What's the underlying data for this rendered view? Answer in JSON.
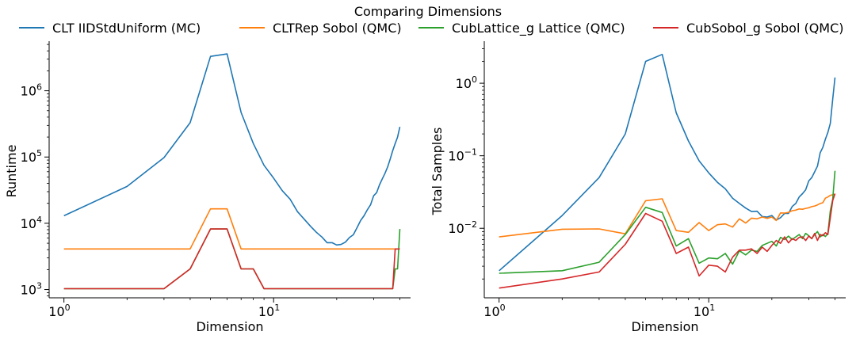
{
  "figure": {
    "title": "Comparing Dimensions"
  },
  "colors": {
    "mc": "#1f77b4",
    "rep": "#ff7f0e",
    "lat": "#2ca02c",
    "sob": "#d62728"
  },
  "chart_data": [
    {
      "type": "line",
      "xlabel": "Dimension",
      "ylabel": "Runtime",
      "xscale": "log",
      "yscale": "log",
      "xlim": [
        0.85,
        45
      ],
      "ylim": [
        750,
        5600000
      ],
      "xtick_labels": [
        "10^0",
        "10^1"
      ],
      "ytick_labels": [
        "10^3",
        "10^4",
        "10^5",
        "10^6"
      ],
      "legend": "top, above plots",
      "grid": false,
      "series": [
        {
          "name": "CLT IIDStdUniform (MC)",
          "color": "#1f77b4",
          "points": [
            [
              1,
              13000
            ],
            [
              2,
              36000
            ],
            [
              3,
              98000
            ],
            [
              4,
              330000
            ],
            [
              5,
              3300000
            ],
            [
              6,
              3600000
            ],
            [
              7,
              470000
            ],
            [
              8,
              160000
            ],
            [
              9,
              75000
            ],
            [
              10,
              48000
            ],
            [
              11,
              31000
            ],
            [
              12,
              23000
            ],
            [
              13,
              15000
            ],
            [
              14,
              11500
            ],
            [
              15,
              9000
            ],
            [
              16,
              7300
            ],
            [
              17,
              6200
            ],
            [
              18,
              5100
            ],
            [
              19,
              5100
            ],
            [
              20,
              4700
            ],
            [
              21,
              4800
            ],
            [
              22,
              5200
            ],
            [
              23,
              6100
            ],
            [
              24,
              6700
            ],
            [
              25,
              8600
            ],
            [
              26,
              11000
            ],
            [
              27,
              13000
            ],
            [
              28,
              16000
            ],
            [
              29,
              19000
            ],
            [
              30,
              26000
            ],
            [
              31,
              29000
            ],
            [
              32,
              38000
            ],
            [
              33,
              47000
            ],
            [
              34,
              57000
            ],
            [
              35,
              71000
            ],
            [
              36,
              94000
            ],
            [
              37,
              125000
            ],
            [
              38,
              160000
            ],
            [
              39,
              200000
            ],
            [
              40,
              285000
            ]
          ]
        },
        {
          "name": "CLTRep Sobol (QMC)",
          "color": "#ff7f0e",
          "points": [
            [
              1,
              4100
            ],
            [
              2,
              4100
            ],
            [
              3,
              4100
            ],
            [
              4,
              4100
            ],
            [
              5,
              16500
            ],
            [
              6,
              16500
            ],
            [
              7,
              4100
            ],
            [
              40,
              4100
            ]
          ]
        },
        {
          "name": "CubLattice_g Lattice (QMC)",
          "color": "#2ca02c",
          "points": [
            [
              1,
              1030
            ],
            [
              3,
              1030
            ],
            [
              4,
              2050
            ],
            [
              5,
              8200
            ],
            [
              6,
              8200
            ],
            [
              7,
              2050
            ],
            [
              8,
              2050
            ],
            [
              9,
              1030
            ],
            [
              37,
              1030
            ],
            [
              38,
              2050
            ],
            [
              39,
              2050
            ],
            [
              40,
              8200
            ]
          ]
        },
        {
          "name": "CubSobol_g Sobol (QMC)",
          "color": "#d62728",
          "points": [
            [
              1,
              1030
            ],
            [
              3,
              1030
            ],
            [
              4,
              2050
            ],
            [
              5,
              8200
            ],
            [
              6,
              8200
            ],
            [
              7,
              2050
            ],
            [
              8,
              2050
            ],
            [
              9,
              1030
            ],
            [
              37,
              1030
            ],
            [
              38,
              4100
            ],
            [
              39,
              4100
            ],
            [
              40,
              4100
            ]
          ]
        }
      ]
    },
    {
      "type": "line",
      "xlabel": "Dimension",
      "ylabel": "Total Samples",
      "xscale": "log",
      "yscale": "log",
      "xlim": [
        0.85,
        45
      ],
      "ylim": [
        0.0011,
        3.8
      ],
      "xtick_labels": [
        "10^0",
        "10^1"
      ],
      "ytick_labels": [
        "10^-2",
        "10^-1",
        "10^0"
      ],
      "legend": "top, above plots",
      "grid": false,
      "series": [
        {
          "name": "CLT IIDStdUniform (MC)",
          "color": "#1f77b4",
          "points": [
            [
              1,
              0.0026
            ],
            [
              2,
              0.015
            ],
            [
              3,
              0.05
            ],
            [
              4,
              0.2
            ],
            [
              5,
              2.0
            ],
            [
              6,
              2.5
            ],
            [
              7,
              0.39
            ],
            [
              8,
              0.16
            ],
            [
              9,
              0.085
            ],
            [
              10,
              0.058
            ],
            [
              11,
              0.043
            ],
            [
              12,
              0.035
            ],
            [
              13,
              0.026
            ],
            [
              14,
              0.022
            ],
            [
              15,
              0.019
            ],
            [
              16,
              0.017
            ],
            [
              17,
              0.0172
            ],
            [
              18,
              0.0145
            ],
            [
              19,
              0.0143
            ],
            [
              20,
              0.015
            ],
            [
              21,
              0.013
            ],
            [
              22,
              0.014
            ],
            [
              23,
              0.016
            ],
            [
              24,
              0.016
            ],
            [
              25,
              0.02
            ],
            [
              26,
              0.022
            ],
            [
              27,
              0.027
            ],
            [
              28,
              0.03
            ],
            [
              29,
              0.034
            ],
            [
              30,
              0.045
            ],
            [
              31,
              0.05
            ],
            [
              32,
              0.06
            ],
            [
              33,
              0.072
            ],
            [
              34,
              0.11
            ],
            [
              35,
              0.13
            ],
            [
              36,
              0.17
            ],
            [
              37,
              0.21
            ],
            [
              38,
              0.28
            ],
            [
              39,
              0.6
            ],
            [
              40,
              1.2
            ]
          ]
        },
        {
          "name": "CLTRep Sobol (QMC)",
          "color": "#ff7f0e",
          "points": [
            [
              1,
              0.0076
            ],
            [
              2,
              0.0097
            ],
            [
              3,
              0.0098
            ],
            [
              4,
              0.0084
            ],
            [
              5,
              0.024
            ],
            [
              6,
              0.0255
            ],
            [
              7,
              0.0093
            ],
            [
              8,
              0.0088
            ],
            [
              9,
              0.012
            ],
            [
              10,
              0.0093
            ],
            [
              11,
              0.0112
            ],
            [
              12,
              0.0115
            ],
            [
              13,
              0.0104
            ],
            [
              14,
              0.0135
            ],
            [
              15,
              0.0118
            ],
            [
              16,
              0.0138
            ],
            [
              17,
              0.0135
            ],
            [
              18,
              0.0143
            ],
            [
              19,
              0.0137
            ],
            [
              20,
              0.0143
            ],
            [
              21,
              0.0128
            ],
            [
              22,
              0.0163
            ],
            [
              23,
              0.0162
            ],
            [
              24,
              0.0166
            ],
            [
              25,
              0.0175
            ],
            [
              26,
              0.0178
            ],
            [
              27,
              0.0185
            ],
            [
              28,
              0.0183
            ],
            [
              29,
              0.0188
            ],
            [
              30,
              0.0192
            ],
            [
              31,
              0.0199
            ],
            [
              32,
              0.0203
            ],
            [
              33,
              0.021
            ],
            [
              34,
              0.022
            ],
            [
              35,
              0.0225
            ],
            [
              36,
              0.026
            ],
            [
              37,
              0.027
            ],
            [
              38,
              0.0285
            ],
            [
              39,
              0.029
            ],
            [
              40,
              0.0295
            ]
          ]
        },
        {
          "name": "CubLattice_g Lattice (QMC)",
          "color": "#2ca02c",
          "points": [
            [
              1,
              0.0024
            ],
            [
              2,
              0.0026
            ],
            [
              3,
              0.0034
            ],
            [
              4,
              0.0082
            ],
            [
              5,
              0.0195
            ],
            [
              6,
              0.0165
            ],
            [
              7,
              0.0057
            ],
            [
              8,
              0.0072
            ],
            [
              9,
              0.0033
            ],
            [
              10,
              0.0039
            ],
            [
              11,
              0.0038
            ],
            [
              12,
              0.0045
            ],
            [
              13,
              0.0032
            ],
            [
              14,
              0.0049
            ],
            [
              15,
              0.0043
            ],
            [
              16,
              0.005
            ],
            [
              17,
              0.0048
            ],
            [
              18,
              0.0058
            ],
            [
              19,
              0.0062
            ],
            [
              20,
              0.0066
            ],
            [
              21,
              0.0057
            ],
            [
              22,
              0.0075
            ],
            [
              23,
              0.007
            ],
            [
              24,
              0.0078
            ],
            [
              25,
              0.007
            ],
            [
              26,
              0.0076
            ],
            [
              27,
              0.0082
            ],
            [
              28,
              0.0072
            ],
            [
              29,
              0.0085
            ],
            [
              30,
              0.0079
            ],
            [
              31,
              0.0072
            ],
            [
              32,
              0.0082
            ],
            [
              33,
              0.009
            ],
            [
              34,
              0.0076
            ],
            [
              35,
              0.0082
            ],
            [
              36,
              0.0077
            ],
            [
              37,
              0.0085
            ],
            [
              38,
              0.0175
            ],
            [
              39,
              0.025
            ],
            [
              40,
              0.062
            ]
          ]
        },
        {
          "name": "CubSobol_g Sobol (QMC)",
          "color": "#d62728",
          "points": [
            [
              1,
              0.0015
            ],
            [
              2,
              0.002
            ],
            [
              3,
              0.0025
            ],
            [
              4,
              0.006
            ],
            [
              5,
              0.016
            ],
            [
              6,
              0.0125
            ],
            [
              7,
              0.0045
            ],
            [
              8,
              0.0055
            ],
            [
              9,
              0.0022
            ],
            [
              10,
              0.0031
            ],
            [
              11,
              0.003
            ],
            [
              12,
              0.0025
            ],
            [
              13,
              0.004
            ],
            [
              14,
              0.005
            ],
            [
              15,
              0.005
            ],
            [
              16,
              0.0052
            ],
            [
              17,
              0.0045
            ],
            [
              18,
              0.0055
            ],
            [
              19,
              0.0048
            ],
            [
              20,
              0.0058
            ],
            [
              21,
              0.0068
            ],
            [
              22,
              0.0062
            ],
            [
              23,
              0.0076
            ],
            [
              24,
              0.0063
            ],
            [
              25,
              0.0072
            ],
            [
              26,
              0.0068
            ],
            [
              27,
              0.0075
            ],
            [
              28,
              0.0076
            ],
            [
              29,
              0.0068
            ],
            [
              30,
              0.0078
            ],
            [
              31,
              0.0072
            ],
            [
              32,
              0.0085
            ],
            [
              33,
              0.0068
            ],
            [
              34,
              0.0082
            ],
            [
              35,
              0.0079
            ],
            [
              36,
              0.0087
            ],
            [
              37,
              0.0082
            ],
            [
              38,
              0.014
            ],
            [
              39,
              0.024
            ],
            [
              40,
              0.03
            ]
          ]
        }
      ]
    }
  ]
}
